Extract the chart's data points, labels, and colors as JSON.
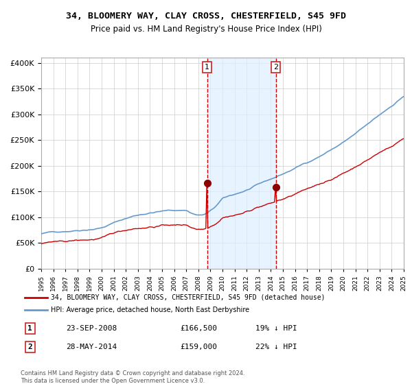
{
  "title": "34, BLOOMERY WAY, CLAY CROSS, CHESTERFIELD, S45 9FD",
  "subtitle": "Price paid vs. HM Land Registry's House Price Index (HPI)",
  "legend_line1": "34, BLOOMERY WAY, CLAY CROSS, CHESTERFIELD, S45 9FD (detached house)",
  "legend_line2": "HPI: Average price, detached house, North East Derbyshire",
  "annotation1_label": "1",
  "annotation1_date": "23-SEP-2008",
  "annotation1_price": "£166,500",
  "annotation1_pct": "19% ↓ HPI",
  "annotation2_label": "2",
  "annotation2_date": "28-MAY-2014",
  "annotation2_price": "£159,000",
  "annotation2_pct": "22% ↓ HPI",
  "footnote": "Contains HM Land Registry data © Crown copyright and database right 2024.\nThis data is licensed under the Open Government Licence v3.0.",
  "hpi_color": "#6699cc",
  "price_color": "#cc0000",
  "marker_color": "#8b0000",
  "vline_color": "#cc0000",
  "shade_color": "#ddeeff",
  "annotation_box_color": "#cc2222",
  "grid_color": "#cccccc",
  "background_color": "#ffffff",
  "ylim": [
    0,
    410000
  ],
  "yticks": [
    0,
    50000,
    100000,
    150000,
    200000,
    250000,
    300000,
    350000,
    400000
  ],
  "x_start_year": 1995,
  "x_end_year": 2025,
  "sale1_year": 2008.73,
  "sale2_year": 2014.41,
  "sale1_price": 166500,
  "sale2_price": 159000
}
